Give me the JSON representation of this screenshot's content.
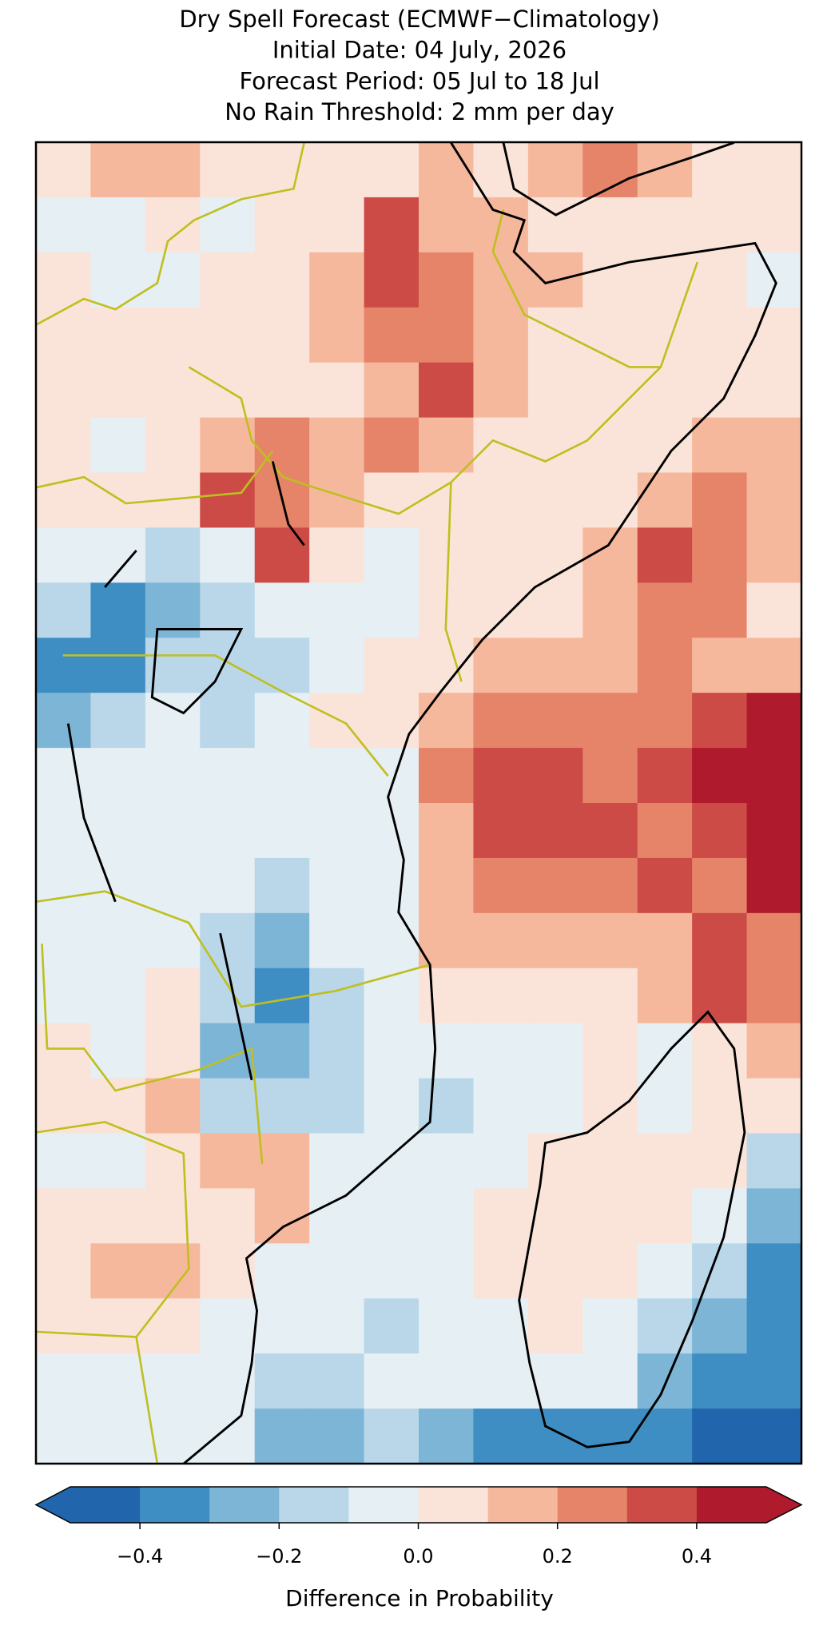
{
  "chart_data": {
    "type": "gridmap",
    "title_lines": [
      "Dry Spell Forecast (ECMWF−Climatology)",
      "Initial Date: 04 July, 2026",
      "Forecast Period: 05 Jul to 18 Jul",
      "No Rain Threshold: 2 mm per day"
    ],
    "values": [
      [
        0.05,
        0.15,
        0.15,
        0.05,
        0.05,
        0.05,
        0.05,
        0.15,
        0.05,
        0.15,
        0.25,
        0.15,
        0.05,
        0.05
      ],
      [
        -0.05,
        -0.05,
        0.05,
        -0.05,
        0.05,
        0.05,
        0.35,
        0.15,
        0.15,
        0.05,
        0.05,
        0.05,
        0.05,
        0.05
      ],
      [
        0.05,
        -0.05,
        -0.05,
        0.05,
        0.05,
        0.15,
        0.35,
        0.25,
        0.15,
        0.15,
        0.05,
        0.05,
        0.05,
        -0.05
      ],
      [
        0.05,
        0.05,
        0.05,
        0.05,
        0.05,
        0.15,
        0.25,
        0.25,
        0.15,
        0.05,
        0.05,
        0.05,
        0.05,
        0.05
      ],
      [
        0.05,
        0.05,
        0.05,
        0.05,
        0.05,
        0.05,
        0.15,
        0.35,
        0.15,
        0.05,
        0.05,
        0.05,
        0.05,
        0.05
      ],
      [
        0.05,
        -0.05,
        0.05,
        0.15,
        0.25,
        0.15,
        0.25,
        0.15,
        0.05,
        0.05,
        0.05,
        0.05,
        0.15,
        0.15
      ],
      [
        0.05,
        0.05,
        0.05,
        0.35,
        0.25,
        0.15,
        0.05,
        0.05,
        0.05,
        0.05,
        0.05,
        0.15,
        0.25,
        0.15
      ],
      [
        -0.05,
        -0.05,
        -0.15,
        -0.05,
        0.35,
        0.05,
        -0.05,
        0.05,
        0.05,
        0.05,
        0.15,
        0.35,
        0.25,
        0.15
      ],
      [
        -0.15,
        -0.35,
        -0.25,
        -0.15,
        -0.05,
        -0.05,
        -0.05,
        0.05,
        0.05,
        0.05,
        0.15,
        0.25,
        0.25,
        0.05
      ],
      [
        -0.35,
        -0.35,
        -0.15,
        -0.15,
        -0.15,
        -0.05,
        0.05,
        0.05,
        0.15,
        0.15,
        0.15,
        0.25,
        0.15,
        0.15
      ],
      [
        -0.25,
        -0.15,
        -0.05,
        -0.15,
        -0.05,
        0.05,
        0.05,
        0.15,
        0.25,
        0.25,
        0.25,
        0.25,
        0.35,
        0.45
      ],
      [
        -0.05,
        -0.05,
        -0.05,
        -0.05,
        -0.05,
        -0.05,
        -0.05,
        0.25,
        0.35,
        0.35,
        0.25,
        0.35,
        0.45,
        0.45
      ],
      [
        -0.05,
        -0.05,
        -0.05,
        -0.05,
        -0.05,
        -0.05,
        -0.05,
        0.15,
        0.35,
        0.35,
        0.35,
        0.25,
        0.35,
        0.45
      ],
      [
        -0.05,
        -0.05,
        -0.05,
        -0.05,
        -0.15,
        -0.05,
        -0.05,
        0.15,
        0.25,
        0.25,
        0.25,
        0.35,
        0.25,
        0.45
      ],
      [
        -0.05,
        -0.05,
        -0.05,
        -0.15,
        -0.25,
        -0.05,
        -0.05,
        0.15,
        0.15,
        0.15,
        0.15,
        0.15,
        0.35,
        0.25
      ],
      [
        -0.05,
        -0.05,
        0.05,
        -0.15,
        -0.35,
        -0.15,
        -0.05,
        0.05,
        0.05,
        0.05,
        0.05,
        0.15,
        0.35,
        0.25
      ],
      [
        0.05,
        -0.05,
        0.05,
        -0.25,
        -0.25,
        -0.15,
        -0.05,
        -0.05,
        -0.05,
        -0.05,
        0.05,
        -0.05,
        0.05,
        0.15
      ],
      [
        0.05,
        0.05,
        0.15,
        -0.15,
        -0.15,
        -0.15,
        -0.05,
        -0.15,
        -0.05,
        -0.05,
        0.05,
        -0.05,
        0.05,
        0.05
      ],
      [
        -0.05,
        -0.05,
        0.05,
        0.15,
        0.15,
        -0.05,
        -0.05,
        -0.05,
        -0.05,
        0.05,
        0.05,
        0.05,
        0.05,
        -0.15
      ],
      [
        0.05,
        0.05,
        0.05,
        0.05,
        0.15,
        -0.05,
        -0.05,
        -0.05,
        0.05,
        0.05,
        0.05,
        0.05,
        -0.05,
        -0.25
      ],
      [
        0.05,
        0.15,
        0.15,
        0.05,
        -0.05,
        -0.05,
        -0.05,
        -0.05,
        0.05,
        0.05,
        0.05,
        -0.05,
        -0.15,
        -0.35
      ],
      [
        0.05,
        0.05,
        0.05,
        -0.05,
        -0.05,
        -0.05,
        -0.15,
        -0.05,
        -0.05,
        0.05,
        -0.05,
        -0.15,
        -0.25,
        -0.35
      ],
      [
        -0.05,
        -0.05,
        -0.05,
        -0.05,
        -0.15,
        -0.15,
        -0.05,
        -0.05,
        -0.05,
        -0.05,
        -0.05,
        -0.25,
        -0.35,
        -0.35
      ],
      [
        -0.05,
        -0.05,
        -0.05,
        -0.05,
        -0.25,
        -0.25,
        -0.15,
        -0.25,
        -0.35,
        -0.35,
        -0.35,
        -0.35,
        -0.45,
        -0.45
      ]
    ],
    "colorbar": {
      "label": "Difference in Probability",
      "levels": [
        -0.5,
        -0.4,
        -0.3,
        -0.2,
        -0.1,
        0,
        0.1,
        0.2,
        0.3,
        0.4,
        0.5
      ],
      "colors": [
        "#2166ac",
        "#3f8ec3",
        "#7db5d7",
        "#b9d7e9",
        "#e6eff4",
        "#fae4d9",
        "#f6b89c",
        "#e58468",
        "#cc4b46",
        "#b01a2d"
      ],
      "extend": "both",
      "ticks": [
        {
          "value": -0.4,
          "label": "−0.4"
        },
        {
          "value": -0.2,
          "label": "−0.2"
        },
        {
          "value": 0,
          "label": "0.0"
        },
        {
          "value": 0.2,
          "label": "0.2"
        },
        {
          "value": 0.4,
          "label": "0.4"
        }
      ]
    }
  }
}
